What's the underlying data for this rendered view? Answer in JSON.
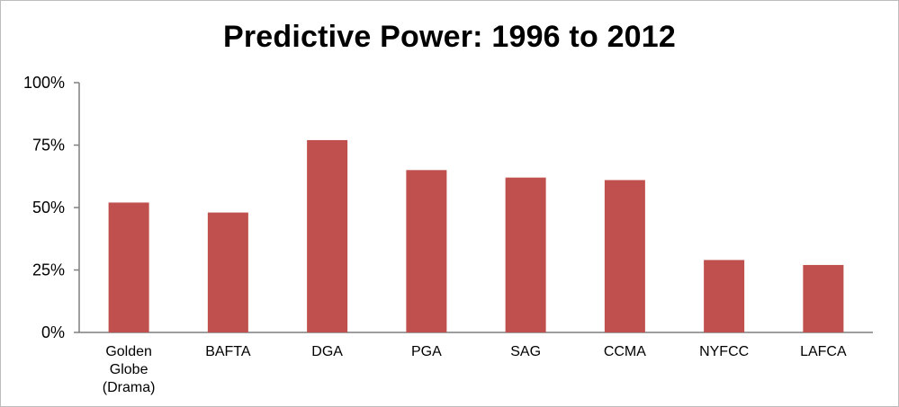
{
  "chart_data": {
    "type": "bar",
    "title": "Predictive Power: 1996 to 2012",
    "xlabel": "",
    "ylabel": "",
    "categories": [
      "Golden Globe (Drama)",
      "BAFTA",
      "DGA",
      "PGA",
      "SAG",
      "CCMA",
      "NYFCC",
      "LAFCA"
    ],
    "category_lines": [
      [
        "Golden",
        "Globe",
        "(Drama)"
      ],
      [
        "BAFTA"
      ],
      [
        "DGA"
      ],
      [
        "PGA"
      ],
      [
        "SAG"
      ],
      [
        "CCMA"
      ],
      [
        "NYFCC"
      ],
      [
        "LAFCA"
      ]
    ],
    "values": [
      52,
      48,
      77,
      65,
      62,
      61,
      29,
      27
    ],
    "ylim": [
      0,
      100
    ],
    "yticks": [
      0,
      25,
      50,
      75,
      100
    ],
    "ytick_labels": [
      "0%",
      "25%",
      "50%",
      "75%",
      "100%"
    ],
    "grid": false,
    "legend": "none",
    "colors": {
      "bar": "#c0504d",
      "axis": "#7f7f7f",
      "text": "#000000",
      "border": "#bdbdbd"
    }
  }
}
